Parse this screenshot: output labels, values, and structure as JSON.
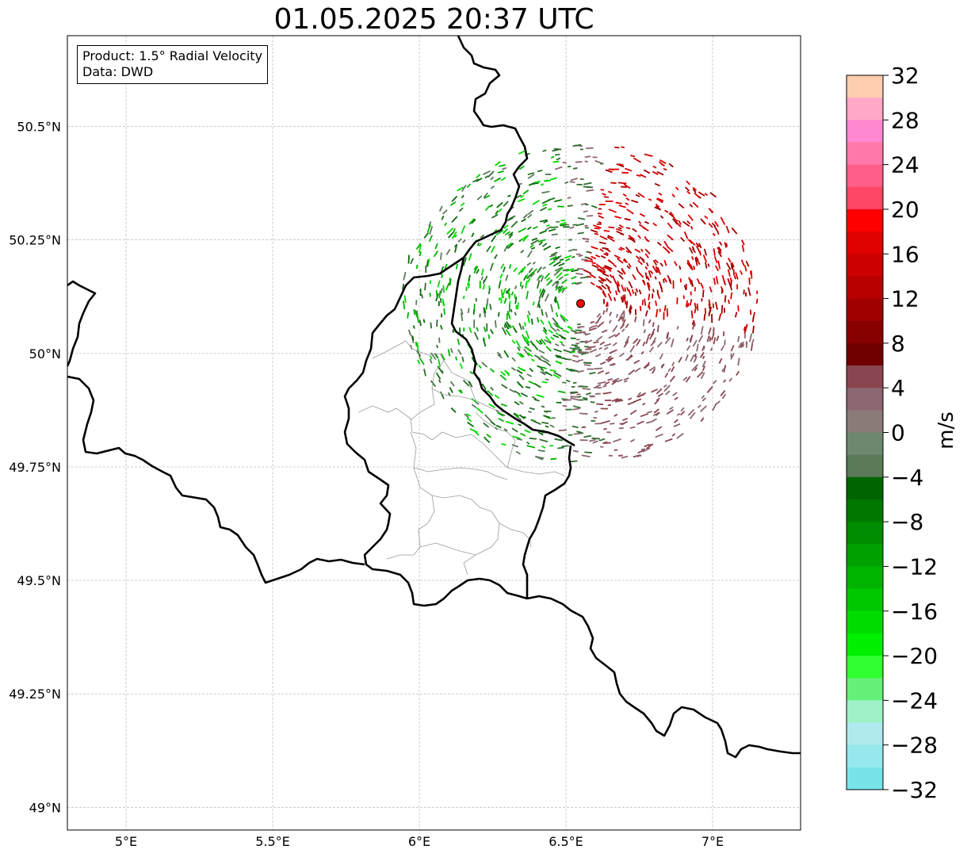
{
  "title": "01.05.2025 20:37 UTC",
  "info": {
    "product": "Product: 1.5° Radial Velocity",
    "data_source": "Data: DWD"
  },
  "map": {
    "lon_range": [
      4.8,
      7.3
    ],
    "lat_range": [
      48.95,
      50.7
    ],
    "lon_ticks": [
      {
        "value": 5.0,
        "label": "5°E"
      },
      {
        "value": 5.5,
        "label": "5.5°E"
      },
      {
        "value": 6.0,
        "label": "6°E"
      },
      {
        "value": 6.5,
        "label": "6.5°E"
      },
      {
        "value": 7.0,
        "label": "7°E"
      }
    ],
    "lat_ticks": [
      {
        "value": 50.5,
        "label": "50.5°N"
      },
      {
        "value": 50.25,
        "label": "50.25°N"
      },
      {
        "value": 50.0,
        "label": "50°N"
      },
      {
        "value": 49.75,
        "label": "49.75°N"
      },
      {
        "value": 49.5,
        "label": "49.5°N"
      },
      {
        "value": 49.25,
        "label": "49.25°N"
      },
      {
        "value": 49.0,
        "label": "49°N"
      }
    ],
    "radar_site": {
      "lon": 6.55,
      "lat": 50.11,
      "color": "#ff0000"
    }
  },
  "colorbar": {
    "label": "m/s",
    "min": -32,
    "max": 32,
    "tick_labels": [
      "32",
      "28",
      "24",
      "20",
      "16",
      "12",
      "8",
      "4",
      "0",
      "−4",
      "−8",
      "−12",
      "−16",
      "−20",
      "−24",
      "−28",
      "−32"
    ],
    "tick_values": [
      32,
      28,
      24,
      20,
      16,
      12,
      8,
      4,
      0,
      -4,
      -8,
      -12,
      -16,
      -20,
      -24,
      -28,
      -32
    ],
    "colors_top_to_bottom": [
      "#ffcdb0",
      "#ffa8c8",
      "#ff88d0",
      "#ff78a8",
      "#ff5e88",
      "#ff4666",
      "#ff0000",
      "#e00000",
      "#cc0000",
      "#b80000",
      "#a00000",
      "#880000",
      "#700000",
      "#8a4650",
      "#8c6670",
      "#8a7a78",
      "#6e8870",
      "#5a7a58",
      "#006400",
      "#007800",
      "#008c00",
      "#00a000",
      "#00b400",
      "#00c800",
      "#00dc00",
      "#00f000",
      "#30ff30",
      "#66f07a",
      "#a0f0c8",
      "#b0eaec",
      "#96e8ec",
      "#78e4e8"
    ]
  },
  "velocity_legend": {
    "toward_colors": [
      "#0a6e0a",
      "#00b400",
      "#00dc00",
      "#2e6e2e",
      "#5a7a58"
    ],
    "away_colors": [
      "#cc0000",
      "#e00000",
      "#a00000",
      "#8c6670",
      "#8a4650"
    ]
  }
}
